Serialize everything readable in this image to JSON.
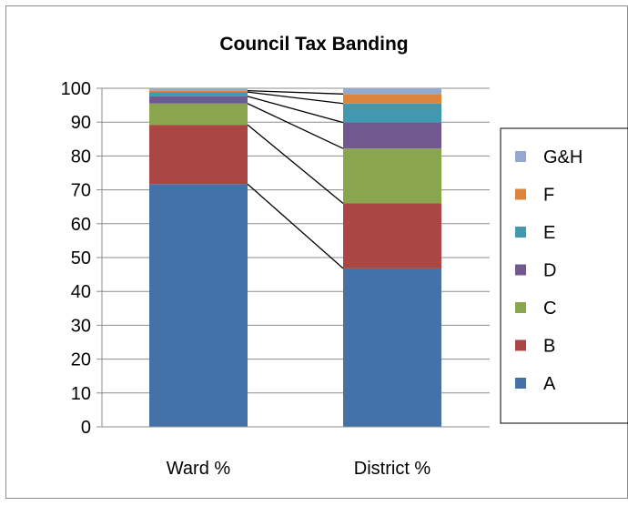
{
  "chart_data": {
    "type": "bar",
    "stacked": true,
    "title": "Council Tax Banding",
    "categories": [
      "Ward %",
      "District %"
    ],
    "ylim": [
      0,
      100
    ],
    "yticks": [
      "0",
      "10",
      "20",
      "30",
      "40",
      "50",
      "60",
      "70",
      "80",
      "90",
      "100"
    ],
    "grid": true,
    "legend_position": "right",
    "series_lines": true,
    "series": [
      {
        "name": "A",
        "color": "#4472a8",
        "values": [
          71.7,
          46.8
        ]
      },
      {
        "name": "B",
        "color": "#aa4643",
        "values": [
          17.5,
          19.2
        ]
      },
      {
        "name": "C",
        "color": "#89a54e",
        "values": [
          6.3,
          16.2
        ]
      },
      {
        "name": "D",
        "color": "#71588f",
        "values": [
          2.1,
          7.7
        ]
      },
      {
        "name": "E",
        "color": "#4198af",
        "values": [
          1.3,
          5.6
        ]
      },
      {
        "name": "F",
        "color": "#db843d",
        "values": [
          0.4,
          2.8
        ]
      },
      {
        "name": "G&H",
        "color": "#93a9cf",
        "values": [
          0.7,
          1.7
        ]
      }
    ]
  }
}
